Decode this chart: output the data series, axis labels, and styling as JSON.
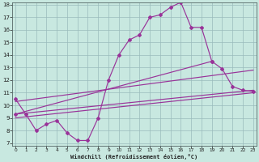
{
  "bg_color": "#aadddd",
  "plot_bg": "#cceeee",
  "line_color": "#993399",
  "grid_color": "#99bbbb",
  "xlabel": "Windchill (Refroidissement éolien,°C)",
  "xlim": [
    0,
    23
  ],
  "ylim": [
    7,
    18
  ],
  "xticks": [
    0,
    1,
    2,
    3,
    4,
    5,
    6,
    7,
    8,
    9,
    10,
    11,
    12,
    13,
    14,
    15,
    16,
    17,
    18,
    19,
    20,
    21,
    22,
    23
  ],
  "yticks": [
    7,
    8,
    9,
    10,
    11,
    12,
    13,
    14,
    15,
    16,
    17,
    18
  ],
  "curve_main_x": [
    0,
    1,
    2,
    3,
    4,
    5,
    6,
    7,
    8,
    9,
    10,
    11,
    12,
    13,
    14,
    15,
    16,
    17,
    18,
    19
  ],
  "curve_main_y": [
    10.5,
    9.3,
    8.0,
    8.5,
    8.8,
    7.8,
    7.2,
    7.2,
    9.0,
    12.0,
    14.0,
    15.2,
    15.6,
    17.0,
    17.2,
    17.8,
    18.2,
    16.2,
    16.2,
    13.5
  ],
  "curve_end_x": [
    0,
    19,
    20,
    21,
    22,
    23
  ],
  "curve_end_y": [
    9.3,
    13.5,
    12.9,
    11.5,
    11.2,
    11.1
  ],
  "line1_x": [
    0,
    23
  ],
  "line1_y": [
    9.3,
    11.2
  ],
  "line2_x": [
    0,
    23
  ],
  "line2_y": [
    9.0,
    11.0
  ],
  "line3_x": [
    0,
    23
  ],
  "line3_y": [
    10.3,
    12.8
  ]
}
